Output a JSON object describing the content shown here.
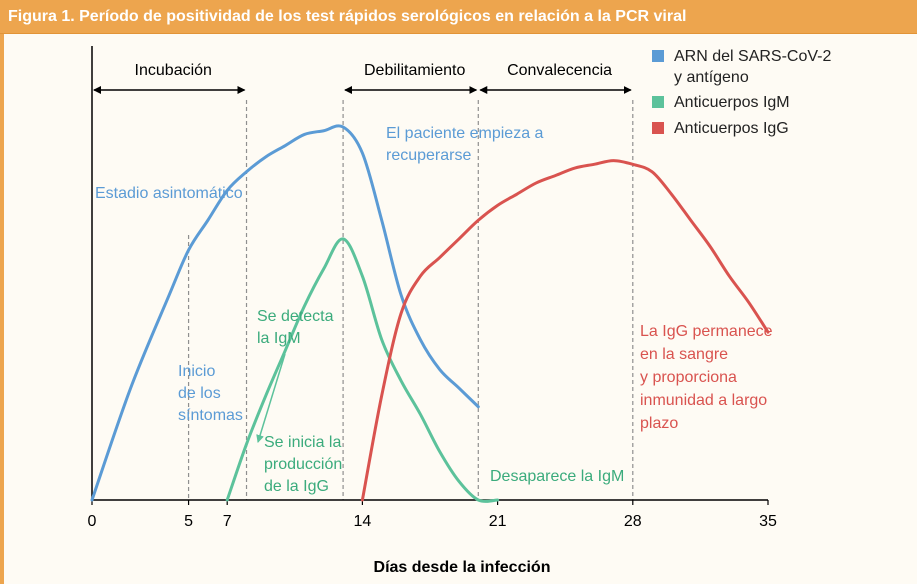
{
  "header": {
    "title": "Figura 1. Período de positividad de los test rápidos serológicos en relación a la PCR viral"
  },
  "chart_data": {
    "type": "line",
    "xlabel": "Días desde la infección",
    "ylabel": "",
    "xlim": [
      0,
      35
    ],
    "ylim": [
      0,
      100
    ],
    "x_ticks": [
      0,
      5,
      7,
      14,
      21,
      28,
      35
    ],
    "x_tick_labels": [
      "0",
      "5",
      "7",
      "14",
      "21",
      "28",
      "35"
    ],
    "grid": false,
    "legend_position": "top-right",
    "phase_markers": [
      5,
      8,
      13,
      20,
      28
    ],
    "phases": [
      {
        "label": "Incubación",
        "from": 0,
        "to": 8
      },
      {
        "label": "Debilitamiento",
        "from": 13,
        "to": 20
      },
      {
        "label": "Convalecencia",
        "from": 20,
        "to": 28
      }
    ],
    "series": [
      {
        "name": "ARN del SARS-CoV-2 y antígeno",
        "color": "#5b9bd5",
        "x": [
          0,
          2,
          4,
          5,
          6,
          7,
          8,
          9,
          10,
          11,
          12,
          13,
          14,
          15,
          16,
          17,
          18,
          19,
          20
        ],
        "y": [
          0,
          30,
          55,
          67,
          75,
          83,
          88,
          92,
          95,
          98,
          99,
          100,
          93,
          75,
          55,
          43,
          35,
          30,
          25
        ]
      },
      {
        "name": "Anticuerpos IgM",
        "color": "#5cc29b",
        "x": [
          7,
          8,
          9,
          10,
          11,
          12,
          13,
          14,
          15,
          16,
          17,
          18,
          19,
          20,
          21
        ],
        "y": [
          0,
          15,
          28,
          40,
          52,
          62,
          70,
          60,
          43,
          32,
          23,
          13,
          5,
          0,
          0
        ]
      },
      {
        "name": "Anticuerpos IgG",
        "color": "#d9534f",
        "x": [
          14,
          15,
          16,
          17,
          18,
          19,
          20,
          21,
          22,
          23,
          24,
          25,
          26,
          27,
          28,
          29,
          30,
          31,
          32,
          33,
          34,
          35
        ],
        "y": [
          0,
          28,
          50,
          60,
          65,
          70,
          75,
          79,
          82,
          85,
          87,
          89,
          90,
          91,
          90,
          88,
          82,
          75,
          68,
          60,
          53,
          45
        ]
      }
    ],
    "legend": [
      {
        "label_lines": [
          "ARN del SARS-CoV-2",
          "y antígeno"
        ],
        "color": "#5b9bd5"
      },
      {
        "label_lines": [
          "Anticuerpos IgM"
        ],
        "color": "#5cc29b"
      },
      {
        "label_lines": [
          "Anticuerpos IgG"
        ],
        "color": "#d9534f"
      }
    ],
    "annotations": [
      {
        "lines": [
          "Estadio asintomático"
        ],
        "color": "#5b9bd5"
      },
      {
        "lines": [
          "El paciente empieza a",
          "recuperarse"
        ],
        "color": "#5b9bd5"
      },
      {
        "lines": [
          "Inicio",
          "de los",
          "síntomas"
        ],
        "color": "#5b9bd5"
      },
      {
        "lines": [
          "Se detecta",
          "la IgM"
        ],
        "color": "#3bab7c"
      },
      {
        "lines": [
          "Se inicia la",
          "producción",
          "de la IgG"
        ],
        "color": "#3bab7c"
      },
      {
        "lines": [
          "Desaparece la IgM"
        ],
        "color": "#3bab7c"
      },
      {
        "lines": [
          "La IgG permanece",
          "en la sangre",
          "y proporciona",
          "inmunidad a largo",
          "plazo"
        ],
        "color": "#d9534f"
      }
    ]
  }
}
